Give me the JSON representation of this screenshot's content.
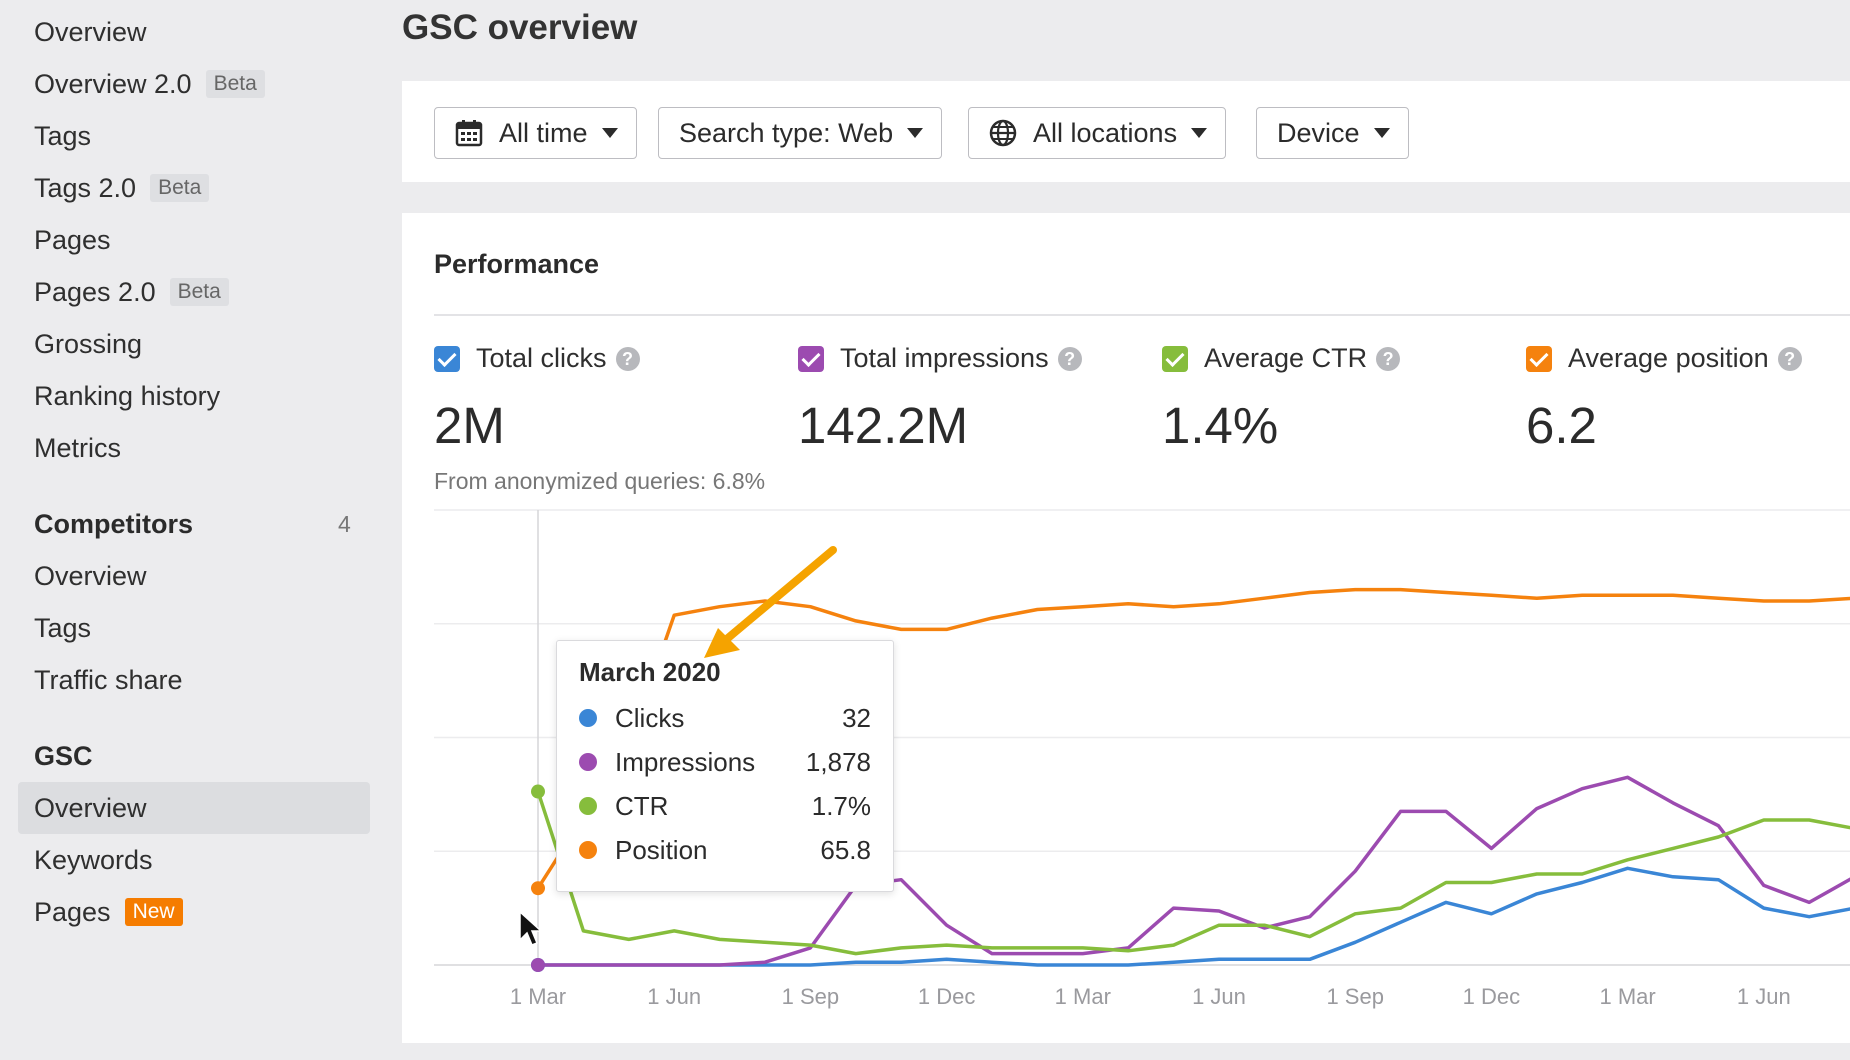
{
  "sidebar": {
    "items": [
      {
        "label": "Overview"
      },
      {
        "label": "Overview 2.0",
        "badge": "Beta"
      },
      {
        "label": "Tags"
      },
      {
        "label": "Tags 2.0",
        "badge": "Beta"
      },
      {
        "label": "Pages"
      },
      {
        "label": "Pages 2.0",
        "badge": "Beta"
      },
      {
        "label": "Grossing"
      },
      {
        "label": "Ranking history"
      },
      {
        "label": "Metrics"
      }
    ],
    "competitors": {
      "heading": "Competitors",
      "count": "4",
      "items": [
        {
          "label": "Overview"
        },
        {
          "label": "Tags"
        },
        {
          "label": "Traffic share"
        }
      ]
    },
    "gsc": {
      "heading": "GSC",
      "items": [
        {
          "label": "Overview",
          "selected": true
        },
        {
          "label": "Keywords"
        },
        {
          "label": "Pages",
          "badge": "New"
        }
      ]
    }
  },
  "header": {
    "title": "GSC overview"
  },
  "filters": {
    "date": {
      "label": "All time",
      "icon": "calendar-icon"
    },
    "search_type": {
      "label": "Search type: Web"
    },
    "locations": {
      "label": "All locations",
      "icon": "globe-icon"
    },
    "device": {
      "label": "Device"
    }
  },
  "performance": {
    "title": "Performance",
    "metrics": [
      {
        "label": "Total clicks",
        "value": "2M",
        "color": "#3a86d6",
        "checked": true
      },
      {
        "label": "Total impressions",
        "value": "142.2M",
        "color": "#9c4bb0",
        "checked": true
      },
      {
        "label": "Average CTR",
        "value": "1.4%",
        "color": "#86bd3c",
        "checked": true
      },
      {
        "label": "Average position",
        "value": "6.2",
        "color": "#f5820e",
        "checked": true
      }
    ],
    "anonymized_note": "From anonymized queries: 6.8%"
  },
  "tooltip": {
    "title": "March 2020",
    "rows": [
      {
        "label": "Clicks",
        "value": "32",
        "color": "#3a86d6"
      },
      {
        "label": "Impressions",
        "value": "1,878",
        "color": "#9c4bb0"
      },
      {
        "label": "CTR",
        "value": "1.7%",
        "color": "#86bd3c"
      },
      {
        "label": "Position",
        "value": "65.8",
        "color": "#f5820e"
      }
    ]
  },
  "chart_data": {
    "type": "line",
    "x": [
      "1 Mar",
      "1 Apr",
      "1 May",
      "1 Jun",
      "1 Jul",
      "1 Aug",
      "1 Sep",
      "1 Oct",
      "1 Nov",
      "1 Dec",
      "1 Jan",
      "1 Feb",
      "1 Mar",
      "1 Apr",
      "1 May",
      "1 Jun",
      "1 Jul",
      "1 Aug",
      "1 Sep",
      "1 Oct",
      "1 Nov",
      "1 Dec",
      "1 Jan",
      "1 Feb",
      "1 Mar",
      "1 Apr",
      "1 May",
      "1 Jun",
      "1 Jul",
      "1 Aug"
    ],
    "xticks": [
      "1 Mar",
      "1 Jun",
      "1 Sep",
      "1 Dec",
      "1 Mar",
      "1 Jun",
      "1 Sep",
      "1 Dec",
      "1 Mar",
      "1 Jun"
    ],
    "grid": true,
    "legend": "none",
    "series": [
      {
        "name": "Clicks",
        "color": "#3a86d6",
        "values": [
          0.0,
          0.0,
          0.0,
          0.0,
          0.0,
          0.0,
          0.0,
          0.01,
          0.01,
          0.02,
          0.01,
          0.0,
          0.0,
          0.0,
          0.01,
          0.02,
          0.02,
          0.02,
          0.08,
          0.15,
          0.22,
          0.18,
          0.25,
          0.29,
          0.34,
          0.31,
          0.3,
          0.2,
          0.17,
          0.2
        ]
      },
      {
        "name": "Impressions",
        "color": "#9c4bb0",
        "values": [
          0.0,
          0.0,
          0.0,
          0.0,
          0.0,
          0.01,
          0.06,
          0.28,
          0.3,
          0.14,
          0.04,
          0.04,
          0.04,
          0.06,
          0.2,
          0.19,
          0.13,
          0.17,
          0.33,
          0.54,
          0.54,
          0.41,
          0.55,
          0.62,
          0.66,
          0.57,
          0.49,
          0.28,
          0.22,
          0.31
        ]
      },
      {
        "name": "CTR",
        "color": "#86bd3c",
        "values": [
          0.61,
          0.12,
          0.09,
          0.12,
          0.09,
          0.08,
          0.07,
          0.04,
          0.06,
          0.07,
          0.06,
          0.06,
          0.06,
          0.05,
          0.07,
          0.14,
          0.14,
          0.1,
          0.18,
          0.2,
          0.29,
          0.29,
          0.32,
          0.32,
          0.37,
          0.41,
          0.45,
          0.51,
          0.51,
          0.48
        ]
      },
      {
        "name": "Position",
        "color": "#f5820e",
        "values": [
          0.27,
          0.52,
          0.77,
          1.23,
          1.26,
          1.28,
          1.26,
          1.21,
          1.18,
          1.18,
          1.22,
          1.25,
          1.26,
          1.27,
          1.26,
          1.27,
          1.29,
          1.31,
          1.32,
          1.32,
          1.31,
          1.3,
          1.29,
          1.3,
          1.3,
          1.3,
          1.29,
          1.28,
          1.28,
          1.29
        ]
      }
    ],
    "ylim": [
      0,
      1.6
    ]
  }
}
